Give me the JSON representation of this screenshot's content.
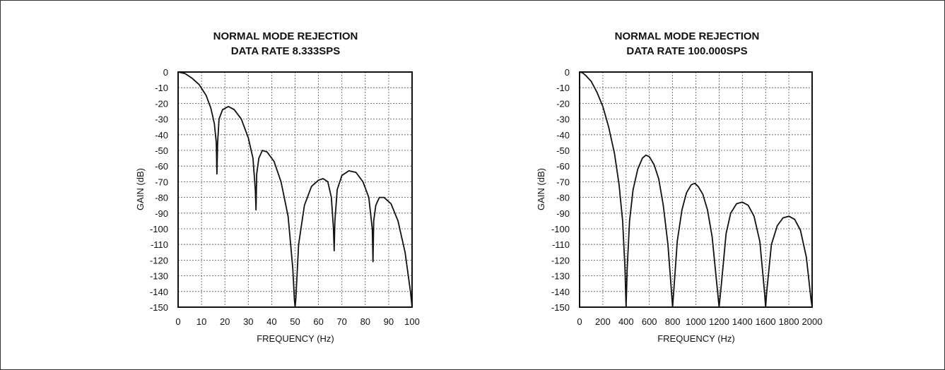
{
  "chart_data": [
    {
      "type": "line",
      "title": [
        "NORMAL MODE REJECTION",
        "DATA RATE 8.333SPS"
      ],
      "xlabel": "FREQUENCY (Hz)",
      "ylabel": "GAIN (dB)",
      "xlim": [
        0,
        100
      ],
      "ylim": [
        -150,
        0
      ],
      "xticks": [
        0,
        10,
        20,
        30,
        40,
        50,
        60,
        70,
        80,
        90,
        100
      ],
      "yticks": [
        0,
        -10,
        -20,
        -30,
        -40,
        -50,
        -60,
        -70,
        -80,
        -90,
        -100,
        -110,
        -120,
        -130,
        -140,
        -150
      ],
      "grid": true,
      "series": [
        {
          "x": [
            0,
            3,
            6,
            9,
            12,
            14,
            15.5,
            16.3,
            16.6,
            16.9,
            17.5,
            19,
            21.5,
            24,
            27,
            30,
            32,
            33,
            33.3,
            33.6,
            34.5,
            36,
            38,
            41,
            44,
            47,
            49,
            49.7,
            50,
            50.3,
            51.5,
            54,
            57,
            60,
            62,
            64,
            65.5,
            66.4,
            66.7,
            67,
            68,
            70,
            73,
            76,
            79,
            81.5,
            83,
            83.3,
            83.6,
            84.5,
            86,
            88,
            91,
            94,
            97,
            99.3,
            100
          ],
          "y": [
            0,
            -1,
            -4,
            -8,
            -15,
            -23,
            -33,
            -45,
            -65,
            -45,
            -30,
            -24,
            -22,
            -24,
            -30,
            -42,
            -55,
            -75,
            -88,
            -65,
            -55,
            -50,
            -51,
            -57,
            -70,
            -92,
            -125,
            -145,
            -150,
            -145,
            -110,
            -85,
            -73,
            -69,
            -68,
            -70,
            -80,
            -100,
            -114,
            -95,
            -75,
            -66,
            -63,
            -64,
            -70,
            -80,
            -100,
            -121,
            -95,
            -85,
            -80,
            -80,
            -84,
            -95,
            -115,
            -140,
            -150
          ]
        }
      ]
    },
    {
      "type": "line",
      "title": [
        "NORMAL MODE REJECTION",
        "DATA RATE 100.000SPS"
      ],
      "xlabel": "FREQUENCY (Hz)",
      "ylabel": "GAIN (dB)",
      "xlim": [
        0,
        2000
      ],
      "ylim": [
        -150,
        0
      ],
      "xticks": [
        0,
        200,
        400,
        600,
        800,
        1000,
        1200,
        1400,
        1600,
        1800,
        2000
      ],
      "yticks": [
        0,
        -10,
        -20,
        -30,
        -40,
        -50,
        -60,
        -70,
        -80,
        -90,
        -100,
        -110,
        -120,
        -130,
        -140,
        -150
      ],
      "grid": true,
      "series": [
        {
          "x": [
            0,
            25,
            50,
            100,
            150,
            200,
            250,
            300,
            340,
            370,
            390,
            400,
            410,
            430,
            460,
            500,
            540,
            570,
            600,
            640,
            680,
            720,
            760,
            790,
            800,
            810,
            840,
            880,
            920,
            960,
            990,
            1020,
            1060,
            1100,
            1140,
            1180,
            1200,
            1220,
            1260,
            1300,
            1350,
            1400,
            1450,
            1500,
            1550,
            1590,
            1600,
            1610,
            1650,
            1700,
            1750,
            1800,
            1850,
            1900,
            1950,
            1990,
            2000
          ],
          "y": [
            0,
            -0.5,
            -2,
            -6,
            -13,
            -22,
            -35,
            -52,
            -72,
            -95,
            -125,
            -150,
            -125,
            -95,
            -75,
            -62,
            -55,
            -53,
            -54,
            -59,
            -68,
            -85,
            -110,
            -140,
            -150,
            -140,
            -108,
            -88,
            -77,
            -72,
            -71,
            -73,
            -78,
            -88,
            -105,
            -135,
            -150,
            -135,
            -103,
            -90,
            -84,
            -83,
            -85,
            -92,
            -108,
            -140,
            -150,
            -140,
            -110,
            -98,
            -93,
            -92,
            -94,
            -101,
            -118,
            -145,
            -150
          ]
        }
      ]
    }
  ]
}
